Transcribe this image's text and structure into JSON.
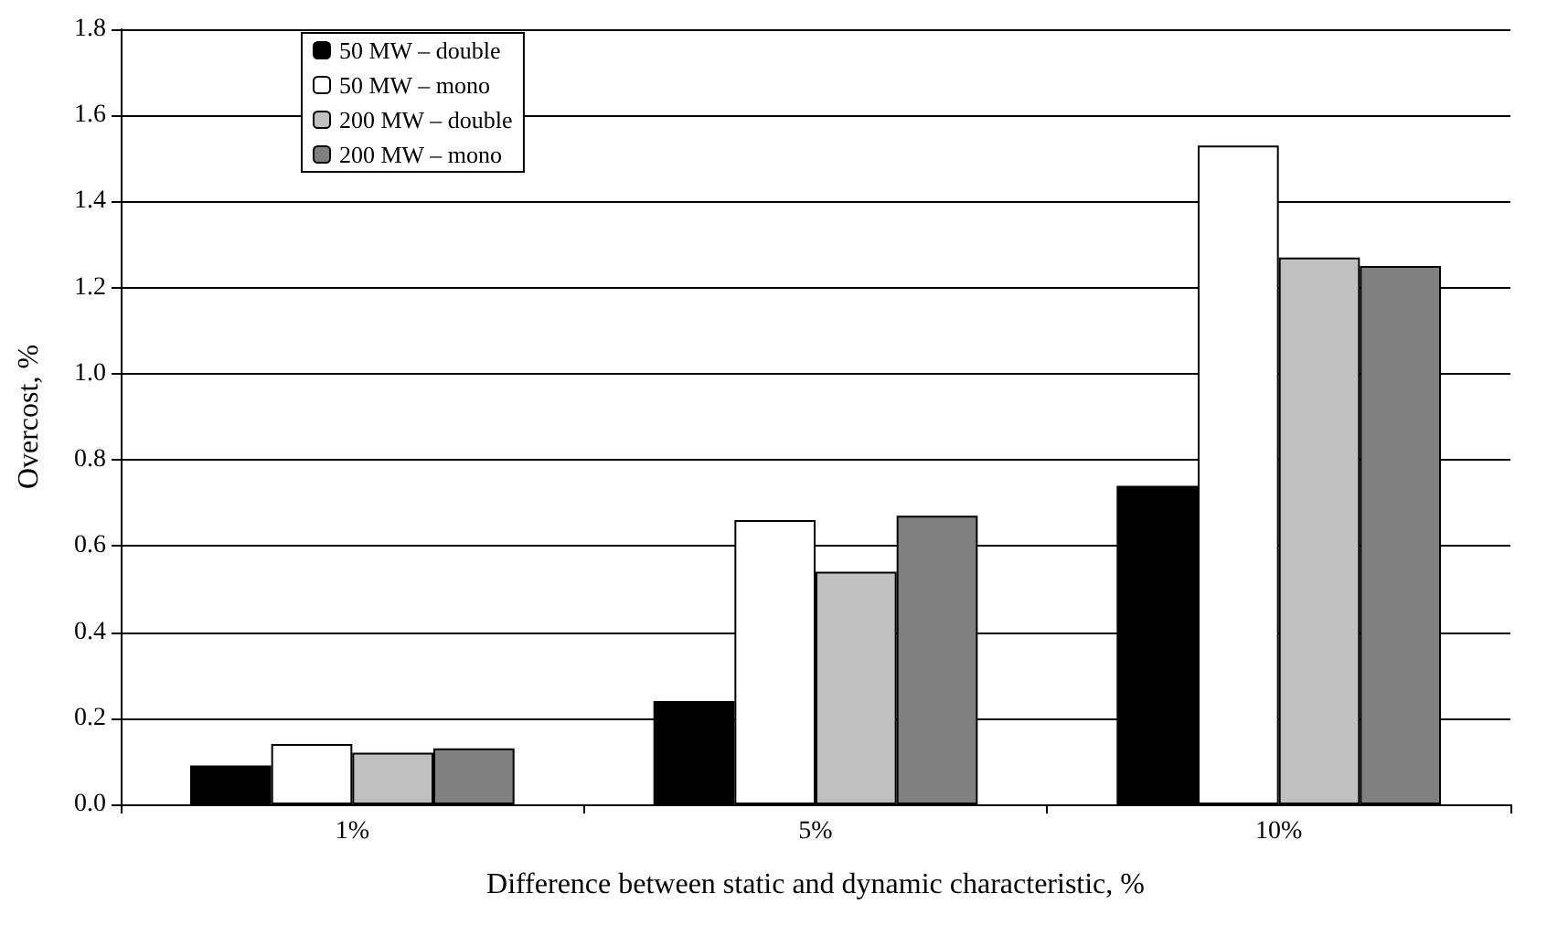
{
  "chart_data": {
    "type": "bar",
    "xlabel": "Difference between static and dynamic characteristic, %",
    "ylabel": "Overcost, %",
    "categories": [
      "1%",
      "5%",
      "10%"
    ],
    "series": [
      {
        "name": "50 MW – double",
        "color": "#000000",
        "values": [
          0.09,
          0.24,
          0.74
        ]
      },
      {
        "name": "50 MW – mono",
        "color": "#ffffff",
        "values": [
          0.14,
          0.66,
          1.53
        ]
      },
      {
        "name": "200 MW – double",
        "color": "#c0c0c0",
        "values": [
          0.12,
          0.54,
          1.27
        ]
      },
      {
        "name": "200 MW – mono",
        "color": "#808080",
        "values": [
          0.13,
          0.67,
          1.25
        ]
      }
    ],
    "ylim": [
      0,
      1.8
    ],
    "yticks": [
      {
        "value": 0,
        "label": "0.0"
      },
      {
        "value": 0.2,
        "label": "0.2"
      },
      {
        "value": 0.4,
        "label": "0.4"
      },
      {
        "value": 0.6,
        "label": "0.6"
      },
      {
        "value": 0.8,
        "label": "0.8"
      },
      {
        "value": 1,
        "label": "1.0"
      },
      {
        "value": 1.2,
        "label": "1.2"
      },
      {
        "value": 1.4,
        "label": "1.4"
      },
      {
        "value": 1.6,
        "label": "1.6"
      },
      {
        "value": 1.8,
        "label": "1.8"
      }
    ],
    "grid": "y",
    "legend": "top left"
  }
}
